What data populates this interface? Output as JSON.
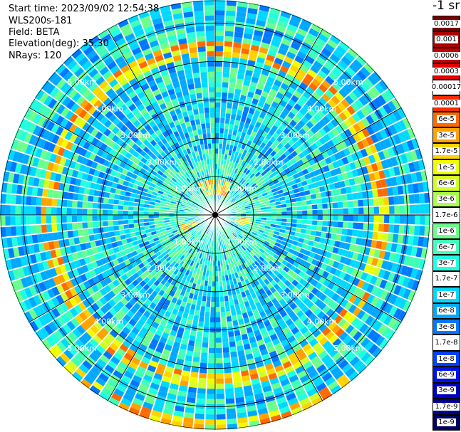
{
  "header": {
    "start_time": "Start time: 2023/09/02 12:54:38",
    "instrument": "WLS200s-181",
    "field": "Field: BETA",
    "elevation": "Elevation(deg): 35.30",
    "nrays": "NRays: 120"
  },
  "colorbar": {
    "unit": "-1 sr",
    "levels": [
      {
        "label": "0.0017",
        "color": "#7a0000"
      },
      {
        "label": "0.001",
        "color": "#a80000"
      },
      {
        "label": "0.0006",
        "color": "#c40000"
      },
      {
        "label": "0.0003",
        "color": "#e00000"
      },
      {
        "label": "0.00017",
        "color": "#ffffff"
      },
      {
        "label": "0.0001",
        "color": "#ff2a00"
      },
      {
        "label": "6e-5",
        "color": "#ff6a00"
      },
      {
        "label": "3e-5",
        "color": "#ffa200"
      },
      {
        "label": "1.7e-5",
        "color": "#ffd200"
      },
      {
        "label": "1e-5",
        "color": "#f0ff00"
      },
      {
        "label": "6e-6",
        "color": "#d2ff28"
      },
      {
        "label": "3e-6",
        "color": "#aaff50"
      },
      {
        "label": "1.7e-6",
        "color": "#ffffff"
      },
      {
        "label": "1e-6",
        "color": "#6cff8c"
      },
      {
        "label": "6e-7",
        "color": "#40ffb8"
      },
      {
        "label": "3e-7",
        "color": "#20ffe0"
      },
      {
        "label": "1.7e-7",
        "color": "#ffffff"
      },
      {
        "label": "1e-7",
        "color": "#00d8ff"
      },
      {
        "label": "6e-8",
        "color": "#00a8ff"
      },
      {
        "label": "3e-8",
        "color": "#0078ff"
      },
      {
        "label": "1.7e-8",
        "color": "#ffffff"
      },
      {
        "label": "1e-8",
        "color": "#0040ff"
      },
      {
        "label": "6e-9",
        "color": "#0010e8"
      },
      {
        "label": "3e-9",
        "color": "#0000c0"
      },
      {
        "label": "1.7e-9",
        "color": "#000090"
      },
      {
        "label": "1e-9",
        "color": "#000060"
      }
    ]
  },
  "chart_data": {
    "type": "heatmap",
    "projection": "polar",
    "rays": 120,
    "range_rings_km": [
      1,
      2,
      3,
      4,
      5
    ],
    "ring_labels": [
      "1.00km",
      "2.00km",
      "3.00km",
      "4.00km",
      "5.00km"
    ],
    "max_range_km": 5.6,
    "azimuth_gridlines_deg": [
      0,
      30,
      60,
      90,
      120,
      150,
      180,
      210,
      240,
      270,
      300,
      330
    ],
    "high_backscatter_bands_km": [
      {
        "range": 0.75,
        "sectors_deg": [
          [
            330,
            30
          ],
          [
            95,
            110
          ],
          [
            240,
            255
          ]
        ],
        "level": "1e-5 to 1.7e-5"
      },
      {
        "range": 4.35,
        "sectors_deg": [
          [
            0,
            360
          ]
        ],
        "level": "1.7e-5 to 1e-4"
      },
      {
        "range": 5.5,
        "sectors_deg": [
          [
            140,
            230
          ]
        ],
        "level": "1e-5 to 1.7e-5"
      }
    ],
    "background_level": "1e-7 to 1e-6"
  }
}
